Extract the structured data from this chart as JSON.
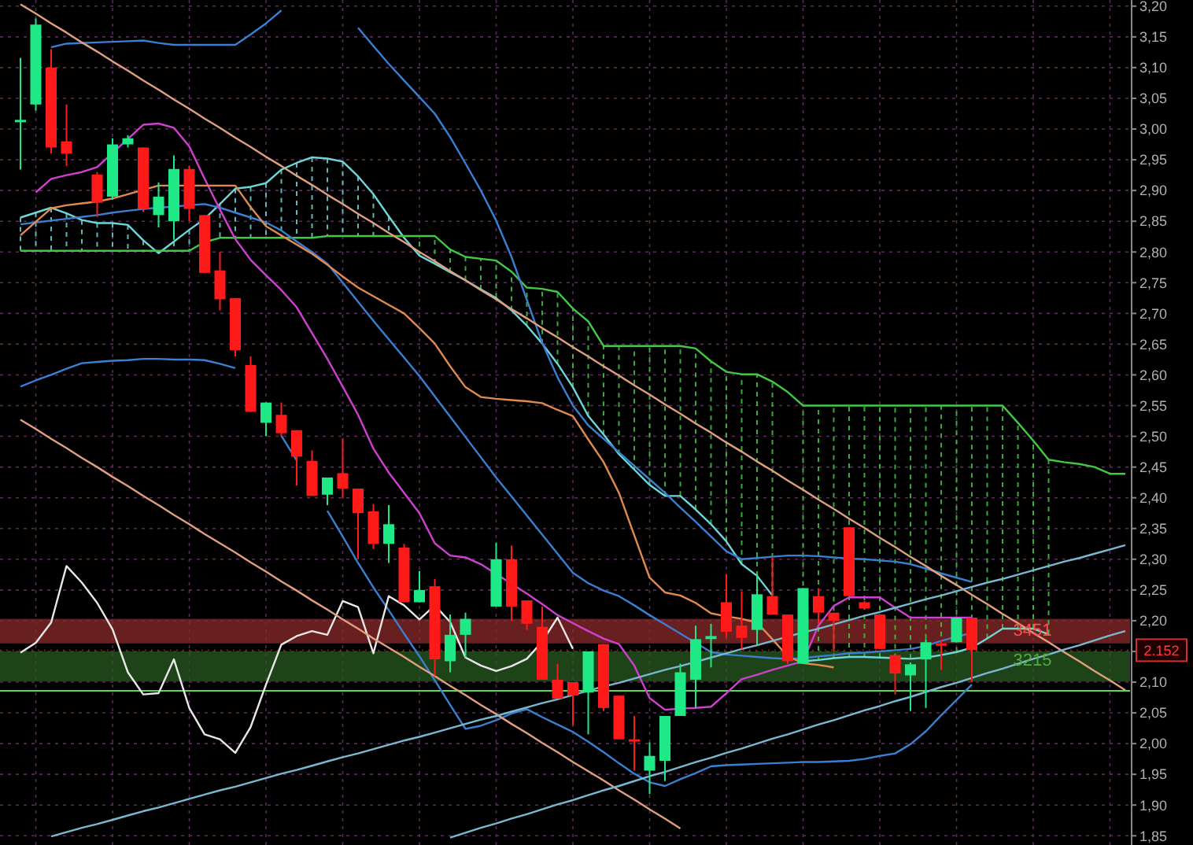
{
  "chart_data": {
    "type": "candlestick",
    "grid": true,
    "ylim": [
      1.835,
      3.21
    ],
    "categories": [
      null,
      null,
      null,
      null,
      null,
      null,
      null,
      null,
      null,
      null,
      null,
      null,
      null,
      null,
      null,
      null,
      null,
      null,
      null,
      null,
      null,
      null,
      null,
      null,
      null,
      null,
      null,
      null,
      null,
      null,
      null,
      null,
      null,
      null,
      null,
      null,
      null,
      null,
      null,
      null,
      null,
      null,
      null,
      null,
      null,
      null,
      null,
      null,
      null,
      null,
      null,
      null,
      null,
      null,
      null,
      null,
      null,
      null,
      null,
      null,
      null,
      null,
      null,
      null,
      null,
      null,
      null,
      null,
      null,
      null,
      null,
      null,
      null
    ],
    "yticks": [
      {
        "value": 1.85,
        "label": "1,85"
      },
      {
        "value": 1.9,
        "label": "1,90"
      },
      {
        "value": 1.95,
        "label": "1,95"
      },
      {
        "value": 2.0,
        "label": "2,00"
      },
      {
        "value": 2.05,
        "label": "2,05"
      },
      {
        "value": 2.1,
        "label": "2,10"
      },
      {
        "value": 2.15,
        "label": null
      },
      {
        "value": 2.2,
        "label": "2,20"
      },
      {
        "value": 2.25,
        "label": "2,25"
      },
      {
        "value": 2.3,
        "label": "2,30"
      },
      {
        "value": 2.35,
        "label": "2,35"
      },
      {
        "value": 2.4,
        "label": "2,40"
      },
      {
        "value": 2.45,
        "label": "2,45"
      },
      {
        "value": 2.5,
        "label": "2,50"
      },
      {
        "value": 2.55,
        "label": "2,55"
      },
      {
        "value": 2.6,
        "label": "2,60"
      },
      {
        "value": 2.65,
        "label": "2,65"
      },
      {
        "value": 2.7,
        "label": "2,70"
      },
      {
        "value": 2.75,
        "label": "2,75"
      },
      {
        "value": 2.8,
        "label": "2,80"
      },
      {
        "value": 2.85,
        "label": "2,85"
      },
      {
        "value": 2.9,
        "label": "2,90"
      },
      {
        "value": 2.95,
        "label": "2,95"
      },
      {
        "value": 3.0,
        "label": "3,00"
      },
      {
        "value": 3.05,
        "label": "3,05"
      },
      {
        "value": 3.1,
        "label": "3,10"
      },
      {
        "value": 3.15,
        "label": "3,15"
      },
      {
        "value": 3.2,
        "label": "3,20"
      }
    ],
    "ohlc": [
      [
        3.015,
        3.116,
        2.934,
        3.013
      ],
      [
        3.04,
        3.18,
        3.03,
        3.17
      ],
      [
        3.1,
        3.13,
        2.96,
        2.97
      ],
      [
        2.98,
        3.04,
        2.94,
        2.96
      ],
      null,
      [
        2.926,
        2.93,
        2.857,
        2.88
      ],
      [
        2.89,
        2.985,
        2.885,
        2.975
      ],
      [
        2.975,
        2.99,
        2.97,
        2.985
      ],
      [
        2.97,
        2.97,
        2.865,
        2.87
      ],
      [
        2.86,
        2.913,
        2.84,
        2.89
      ],
      [
        2.85,
        2.957,
        2.82,
        2.935
      ],
      [
        2.935,
        2.94,
        2.85,
        2.87
      ],
      [
        2.86,
        2.86,
        2.766,
        2.766
      ],
      [
        2.77,
        2.8,
        2.705,
        2.723
      ],
      [
        2.725,
        2.725,
        2.63,
        2.64
      ],
      [
        2.616,
        2.63,
        2.54,
        2.54
      ],
      [
        2.522,
        2.555,
        2.5,
        2.555
      ],
      [
        2.535,
        2.555,
        2.5,
        2.505
      ],
      [
        2.51,
        2.51,
        2.42,
        2.467
      ],
      [
        2.46,
        2.477,
        2.403,
        2.403
      ],
      [
        2.405,
        2.433,
        2.388,
        2.433
      ],
      [
        2.44,
        2.497,
        2.4,
        2.415
      ],
      [
        2.415,
        2.415,
        2.3,
        2.375
      ],
      [
        2.378,
        2.39,
        2.317,
        2.325
      ],
      [
        2.325,
        2.388,
        2.294,
        2.357
      ],
      [
        2.319,
        2.325,
        2.23,
        2.23
      ],
      [
        2.23,
        2.281,
        2.23,
        2.25
      ],
      [
        2.256,
        2.268,
        2.11,
        2.137
      ],
      [
        2.134,
        2.21,
        2.116,
        2.177
      ],
      [
        2.177,
        2.213,
        2.14,
        2.203
      ],
      null,
      [
        2.223,
        2.327,
        2.223,
        2.3
      ],
      [
        2.3,
        2.322,
        2.2,
        2.223
      ],
      [
        2.233,
        2.233,
        2.185,
        2.195
      ],
      [
        2.19,
        2.223,
        2.104,
        2.104
      ],
      [
        2.104,
        2.13,
        2.073,
        2.073
      ],
      [
        2.1,
        2.1,
        2.03,
        2.078
      ],
      [
        2.083,
        2.15,
        2.015,
        2.15
      ],
      [
        2.162,
        2.162,
        2.053,
        2.058
      ],
      [
        2.078,
        2.078,
        2.007,
        2.007
      ],
      [
        2.007,
        2.045,
        1.956,
        2.005
      ],
      [
        1.956,
        2.002,
        1.918,
        1.98
      ],
      [
        1.972,
        2.045,
        1.939,
        2.045
      ],
      [
        2.045,
        2.13,
        2.045,
        2.116
      ],
      [
        2.104,
        2.192,
        2.058,
        2.17
      ],
      [
        2.17,
        2.195,
        2.124,
        2.175
      ],
      [
        2.23,
        2.276,
        2.172,
        2.182
      ],
      [
        2.192,
        2.248,
        2.154,
        2.172
      ],
      [
        2.185,
        2.276,
        2.16,
        2.243
      ],
      [
        2.24,
        2.304,
        2.21,
        2.21
      ],
      [
        2.21,
        2.21,
        2.13,
        2.134
      ],
      [
        2.13,
        2.253,
        2.13,
        2.253
      ],
      [
        2.24,
        2.253,
        2.195,
        2.213
      ],
      [
        2.213,
        2.213,
        2.15,
        2.2
      ],
      [
        2.352,
        2.352,
        2.24,
        2.24
      ],
      [
        2.23,
        2.232,
        2.218,
        2.22
      ],
      [
        2.21,
        2.21,
        2.154,
        2.154
      ],
      [
        2.144,
        2.144,
        2.08,
        2.114
      ],
      [
        2.111,
        2.132,
        2.053,
        2.129
      ],
      [
        2.137,
        2.17,
        2.058,
        2.165
      ],
      [
        2.163,
        2.168,
        2.12,
        2.16
      ],
      [
        2.165,
        2.205,
        2.165,
        2.205
      ],
      [
        2.205,
        2.205,
        2.1,
        2.152
      ],
      null,
      null,
      null,
      null,
      null,
      null,
      null,
      null,
      null,
      null
    ],
    "colors": [
      "#1fe887",
      "#1fe887",
      "#ff1a1a",
      "#ff1a1a",
      null,
      "#ff1a1a",
      "#1fe887",
      "#1fe887",
      "#ff1a1a",
      "#1fe887",
      "#1fe887",
      "#ff1a1a",
      "#ff1a1a",
      "#ff1a1a",
      "#ff1a1a",
      "#ff1a1a",
      "#1fe887",
      "#ff1a1a",
      "#ff1a1a",
      "#ff1a1a",
      "#1fe887",
      "#ff1a1a",
      "#ff1a1a",
      "#ff1a1a",
      "#1fe887",
      "#ff1a1a",
      "#1fe887",
      "#ff1a1a",
      "#1fe887",
      "#1fe887",
      null,
      "#1fe887",
      "#ff1a1a",
      "#ff1a1a",
      "#ff1a1a",
      "#ff1a1a",
      "#ff1a1a",
      "#1fe887",
      "#ff1a1a",
      "#ff1a1a",
      "#ff1a1a",
      "#1fe887",
      "#1fe887",
      "#1fe887",
      "#1fe887",
      "#1fe887",
      "#ff1a1a",
      "#ff1a1a",
      "#1fe887",
      "#ff1a1a",
      "#ff1a1a",
      "#1fe887",
      "#ff1a1a",
      "#ff1a1a",
      "#ff1a1a",
      "#ff1a1a",
      "#ff1a1a",
      "#ff1a1a",
      "#1fe887",
      "#1fe887",
      "#ff1a1a",
      "#1fe887",
      "#ff1a1a",
      null,
      null,
      null,
      null,
      null,
      null,
      null,
      null,
      null,
      null
    ],
    "series": [
      {
        "type": "line",
        "color": "#6fd6d6",
        "values": [
          2.856,
          2.864,
          2.872,
          2.863,
          2.852,
          2.847,
          2.847,
          2.844,
          2.819,
          2.798,
          2.817,
          2.836,
          2.854,
          2.878,
          2.903,
          2.906,
          2.912,
          2.934,
          2.945,
          2.954,
          2.952,
          2.947,
          2.923,
          2.894,
          2.858,
          2.823,
          2.794,
          2.781,
          2.767,
          2.754,
          2.739,
          2.725,
          2.705,
          2.68,
          2.651,
          2.618,
          2.58,
          2.533,
          2.503,
          2.471,
          2.446,
          2.421,
          2.403,
          2.403,
          2.381,
          2.357,
          2.329,
          2.292,
          2.273,
          2.241,
          null,
          2.134,
          2.136,
          2.139,
          2.141,
          2.141,
          2.14,
          2.139,
          2.138,
          2.14,
          2.144,
          2.149,
          2.156,
          2.171,
          2.187,
          2.187,
          2.187,
          2.178,
          null,
          null,
          null,
          null,
          null
        ]
      },
      {
        "type": "line",
        "color": "#43c843",
        "values": [
          2.802,
          2.802,
          2.802,
          2.802,
          2.802,
          2.802,
          2.802,
          2.802,
          2.802,
          2.802,
          2.802,
          2.802,
          2.816,
          2.823,
          2.823,
          2.823,
          2.823,
          2.823,
          2.823,
          2.823,
          2.826,
          2.826,
          2.826,
          2.826,
          2.826,
          2.826,
          2.826,
          2.826,
          2.804,
          2.792,
          2.789,
          2.786,
          2.768,
          2.742,
          2.74,
          2.735,
          2.708,
          2.687,
          2.647,
          2.647,
          2.647,
          2.647,
          2.647,
          2.647,
          2.643,
          2.622,
          2.605,
          2.601,
          2.601,
          2.589,
          2.572,
          2.55,
          2.55,
          2.55,
          2.55,
          2.55,
          2.55,
          2.55,
          2.55,
          2.55,
          2.55,
          2.55,
          2.55,
          2.55,
          2.55,
          2.522,
          2.493,
          2.462,
          2.458,
          2.455,
          2.45,
          2.439,
          2.439
        ]
      },
      {
        "type": "line",
        "color": "#3a7fd0",
        "values": [
          null,
          null,
          3.133,
          3.139,
          3.14,
          3.141,
          3.142,
          3.143,
          3.144,
          3.14,
          3.137,
          3.137,
          3.137,
          3.137,
          3.137,
          3.154,
          3.172,
          3.193,
          null,
          null,
          null,
          null,
          3.165,
          3.135,
          3.106,
          3.079,
          3.052,
          3.025,
          2.987,
          2.944,
          2.9,
          2.851,
          2.792,
          2.722,
          2.652,
          2.596,
          2.55,
          2.518,
          2.496,
          2.474,
          2.452,
          2.43,
          2.408,
          2.384,
          2.361,
          2.337,
          2.313,
          2.3,
          2.302,
          2.304,
          2.306,
          2.306,
          2.305,
          2.303,
          2.301,
          2.3,
          2.298,
          2.296,
          2.292,
          2.285,
          2.277,
          2.27,
          2.263,
          null,
          null,
          null,
          null,
          null,
          null,
          null,
          null,
          null,
          null
        ]
      },
      {
        "type": "line",
        "color": "#3a7fd0",
        "values": [
          2.845,
          2.848,
          2.851,
          2.854,
          2.857,
          2.86,
          2.864,
          2.867,
          2.87,
          2.872,
          2.874,
          2.876,
          2.878,
          2.872,
          2.864,
          2.856,
          2.848,
          2.835,
          2.817,
          2.8,
          2.781,
          2.75,
          2.719,
          2.688,
          2.658,
          2.628,
          2.598,
          2.565,
          2.532,
          2.499,
          2.466,
          2.433,
          2.402,
          2.371,
          2.34,
          2.309,
          2.278,
          2.261,
          2.249,
          2.24,
          2.225,
          2.209,
          2.194,
          2.179,
          2.164,
          2.149,
          2.145,
          2.143,
          2.141,
          2.139,
          2.138,
          2.139,
          2.142,
          2.144,
          2.147,
          2.148,
          2.15,
          2.152,
          2.154,
          2.159,
          2.167,
          2.174,
          2.18,
          null,
          null,
          null,
          null,
          null,
          null,
          null,
          null,
          null,
          null
        ]
      },
      {
        "type": "line",
        "color": "#3a7fd0",
        "values": [
          2.581,
          2.591,
          2.6,
          2.61,
          2.619,
          2.621,
          2.623,
          2.624,
          2.626,
          2.626,
          2.625,
          2.625,
          2.624,
          2.618,
          2.611,
          null,
          null,
          2.501,
          2.461,
          null,
          2.379,
          2.337,
          2.294,
          2.254,
          2.217,
          2.179,
          2.142,
          2.103,
          2.063,
          2.024,
          2.029,
          2.038,
          2.049,
          2.056,
          2.043,
          2.031,
          2.019,
          2.003,
          1.986,
          1.968,
          1.951,
          1.937,
          1.931,
          1.942,
          1.952,
          1.963,
          1.965,
          1.966,
          1.967,
          1.968,
          1.969,
          1.97,
          1.97,
          1.971,
          1.972,
          1.975,
          1.98,
          1.984,
          1.999,
          2.02,
          2.046,
          2.071,
          2.096,
          null,
          null,
          null,
          null,
          null,
          null,
          null,
          null,
          null,
          null
        ]
      },
      {
        "type": "line",
        "color": "#d040d0",
        "values": [
          null,
          2.897,
          2.919,
          2.925,
          2.93,
          2.938,
          2.961,
          2.984,
          3.007,
          3.009,
          3.002,
          2.972,
          2.919,
          2.869,
          2.821,
          2.787,
          2.762,
          2.738,
          2.71,
          2.668,
          2.626,
          2.581,
          2.535,
          2.48,
          2.441,
          2.408,
          2.375,
          2.326,
          2.306,
          2.303,
          2.292,
          2.276,
          2.26,
          2.244,
          2.227,
          2.209,
          2.196,
          2.183,
          2.171,
          2.162,
          2.127,
          2.074,
          2.055,
          2.057,
          2.058,
          2.06,
          2.082,
          2.105,
          2.112,
          2.12,
          2.127,
          2.134,
          2.192,
          2.224,
          2.238,
          2.238,
          2.238,
          2.221,
          2.205,
          2.205,
          2.205,
          2.205,
          2.205,
          null,
          null,
          null,
          null,
          null,
          null,
          null,
          null,
          null,
          null
        ]
      },
      {
        "type": "line",
        "color": "#e08a50",
        "values": [
          2.827,
          2.849,
          2.871,
          2.876,
          2.879,
          2.882,
          2.887,
          2.894,
          2.901,
          2.908,
          2.908,
          2.908,
          2.908,
          2.908,
          2.908,
          2.873,
          2.842,
          2.827,
          2.812,
          2.797,
          2.779,
          2.76,
          2.742,
          2.728,
          2.714,
          2.7,
          2.676,
          2.651,
          2.614,
          2.58,
          2.564,
          2.561,
          2.559,
          2.557,
          2.554,
          2.543,
          2.533,
          2.495,
          2.458,
          2.408,
          2.339,
          2.27,
          2.246,
          2.241,
          2.229,
          2.212,
          2.207,
          2.203,
          2.197,
          2.17,
          2.142,
          2.131,
          2.128,
          2.124,
          null,
          null,
          null,
          null,
          null,
          null,
          null,
          null,
          null,
          null,
          null,
          null,
          null,
          null,
          null,
          null,
          null,
          null,
          null
        ]
      },
      {
        "type": "line",
        "color": "#e8e8e8",
        "values": [
          2.148,
          2.164,
          2.197,
          2.289,
          2.262,
          2.229,
          2.186,
          2.116,
          2.08,
          2.082,
          2.137,
          2.058,
          2.015,
          2.007,
          1.985,
          2.027,
          2.096,
          2.161,
          2.175,
          2.183,
          2.177,
          2.232,
          2.222,
          2.147,
          2.24,
          2.225,
          2.202,
          2.225,
          2.198,
          2.14,
          2.127,
          2.118,
          2.126,
          2.138,
          2.166,
          2.205,
          2.154,
          null,
          null,
          null,
          null,
          null,
          null,
          null,
          null,
          null,
          null,
          null,
          null,
          null,
          null,
          null,
          null,
          null,
          null,
          null,
          null,
          null,
          null,
          null,
          null,
          null,
          null,
          null,
          null,
          null,
          null,
          null,
          null,
          null,
          null,
          null,
          null
        ]
      },
      {
        "type": "line",
        "color": "#e0a080",
        "values": [
          3.203,
          3.188,
          3.172,
          3.157,
          3.141,
          3.126,
          3.11,
          3.095,
          3.079,
          3.064,
          3.048,
          3.033,
          3.017,
          3.002,
          2.986,
          2.971,
          2.955,
          2.94,
          2.924,
          2.909,
          2.893,
          2.878,
          2.862,
          2.847,
          2.831,
          2.816,
          2.8,
          2.785,
          2.769,
          2.754,
          2.738,
          2.723,
          2.707,
          2.692,
          2.676,
          2.661,
          2.645,
          2.63,
          2.614,
          2.599,
          2.583,
          2.568,
          2.552,
          2.537,
          2.521,
          2.506,
          2.49,
          2.475,
          2.459,
          2.444,
          2.428,
          2.413,
          2.397,
          2.382,
          2.366,
          2.351,
          2.335,
          2.32,
          2.304,
          2.289,
          2.273,
          2.258,
          2.242,
          2.227,
          2.211,
          2.196,
          2.18,
          2.165,
          2.149,
          2.134,
          2.118,
          2.103,
          2.087
        ]
      },
      {
        "type": "line",
        "color": "#e0a080",
        "values": [
          2.527,
          2.512,
          2.496,
          2.481,
          2.465,
          2.45,
          2.434,
          2.419,
          2.403,
          2.388,
          2.372,
          2.357,
          2.341,
          2.326,
          2.311,
          2.295,
          2.28,
          2.264,
          2.249,
          2.233,
          2.218,
          2.202,
          2.187,
          2.171,
          2.156,
          2.141,
          2.125,
          2.11,
          2.094,
          2.079,
          2.063,
          2.048,
          2.032,
          2.017,
          2.001,
          1.986,
          1.97,
          1.955,
          1.94,
          1.924,
          1.909,
          1.893,
          1.878,
          1.862,
          null,
          null,
          null,
          null,
          null,
          null,
          null,
          null,
          null,
          null,
          null,
          null,
          null,
          null,
          null,
          null,
          null,
          null,
          null,
          null,
          null,
          null,
          null,
          null,
          null,
          null,
          null,
          null,
          null
        ]
      },
      {
        "type": "line",
        "color": "#7ab8d0",
        "values": [
          null,
          null,
          1.849,
          1.856,
          1.863,
          1.869,
          1.876,
          1.883,
          1.89,
          1.896,
          1.903,
          1.91,
          1.917,
          1.924,
          1.93,
          1.937,
          1.944,
          1.951,
          1.957,
          1.964,
          1.971,
          1.978,
          1.984,
          1.991,
          1.998,
          2.005,
          2.011,
          2.018,
          2.025,
          2.032,
          2.039,
          2.045,
          2.052,
          2.059,
          2.066,
          2.072,
          2.079,
          2.086,
          2.093,
          2.099,
          2.106,
          2.113,
          2.12,
          2.126,
          2.133,
          2.14,
          2.147,
          2.154,
          2.16,
          2.167,
          2.174,
          2.181,
          2.187,
          2.194,
          2.201,
          2.208,
          2.214,
          2.221,
          2.228,
          2.235,
          2.241,
          2.248,
          2.255,
          2.262,
          2.268,
          2.275,
          2.282,
          2.289,
          2.296,
          2.302,
          2.309,
          2.316,
          2.323
        ]
      },
      {
        "type": "line",
        "color": "#7ab8d0",
        "values": [
          null,
          null,
          null,
          null,
          null,
          null,
          null,
          null,
          null,
          null,
          null,
          null,
          null,
          null,
          null,
          null,
          null,
          null,
          null,
          null,
          null,
          null,
          null,
          null,
          null,
          null,
          null,
          null,
          1.847,
          1.855,
          1.863,
          1.87,
          1.878,
          1.885,
          1.893,
          1.901,
          1.908,
          1.916,
          1.924,
          1.931,
          1.939,
          1.947,
          1.954,
          1.962,
          1.97,
          1.977,
          1.985,
          1.992,
          2.0,
          2.008,
          2.015,
          2.023,
          2.031,
          2.038,
          2.046,
          2.054,
          2.061,
          2.069,
          2.076,
          2.084,
          2.092,
          2.099,
          2.107,
          2.115,
          2.122,
          2.13,
          2.138,
          2.145,
          2.153,
          2.16,
          2.168,
          2.176,
          2.183
        ]
      }
    ],
    "bands": [
      {
        "axis": "y",
        "from": 2.163,
        "to": 2.203,
        "color": "#8a2a2a"
      },
      {
        "axis": "y",
        "from": 2.101,
        "to": 2.15,
        "color": "#2a5a22"
      }
    ],
    "ref_lines": [
      {
        "axis": "y",
        "value": 2.086,
        "color": "#5ad85a"
      },
      {
        "axis": "y",
        "value": 2.152,
        "label": "2.152",
        "color": "#d03030",
        "line_style": "dotted"
      }
    ],
    "annotations": [
      {
        "text": "3451",
        "y": 2.185
      },
      {
        "text": "3215",
        "y": 2.137
      }
    ]
  }
}
